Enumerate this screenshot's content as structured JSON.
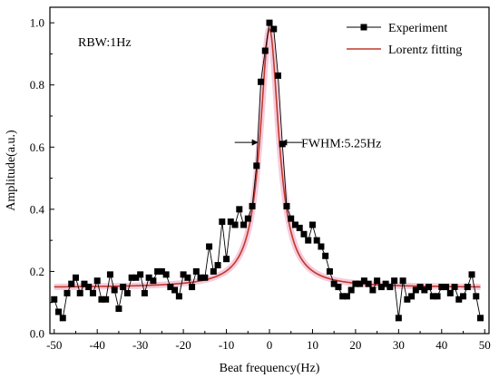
{
  "chart_data": {
    "type": "scatter",
    "xlabel": "Beat frequency(Hz)",
    "ylabel": "Amplitude(a.u.)",
    "xlim": [
      -51,
      51
    ],
    "ylim": [
      0.0,
      1.05
    ],
    "xticks": [
      -50,
      -40,
      -30,
      -20,
      -10,
      0,
      10,
      20,
      30,
      40,
      50
    ],
    "yticks": [
      0.0,
      0.2,
      0.4,
      0.6,
      0.8,
      1.0
    ],
    "xtick_labels": [
      "-50",
      "-40",
      "-30",
      "-20",
      "-10",
      "0",
      "10",
      "20",
      "30",
      "40",
      "50"
    ],
    "ytick_labels": [
      "0.0",
      "0.2",
      "0.4",
      "0.6",
      "0.8",
      "1.0"
    ],
    "grid": false,
    "legend_position": "top-right",
    "annotations": {
      "rbw": "RBW:1Hz",
      "fwhm": "FWHM:5.25Hz"
    },
    "colors": {
      "experiment": "#000000",
      "fit": "#c0392b",
      "fit_glow": "#f4c2d6"
    },
    "series": [
      {
        "name": "Experiment",
        "style": "line-square-markers",
        "x": [
          -50,
          -49,
          -48,
          -47,
          -46,
          -45,
          -44,
          -43,
          -42,
          -41,
          -40,
          -39,
          -38,
          -37,
          -36,
          -35,
          -34,
          -33,
          -32,
          -31,
          -30,
          -29,
          -28,
          -27,
          -26,
          -25,
          -24,
          -23,
          -22,
          -21,
          -20,
          -19,
          -18,
          -17,
          -16,
          -15,
          -14,
          -13,
          -12,
          -11,
          -10,
          -9,
          -8,
          -7,
          -6,
          -5,
          -4,
          -3,
          -2,
          -1,
          0,
          1,
          2,
          3,
          4,
          5,
          6,
          7,
          8,
          9,
          10,
          11,
          12,
          13,
          14,
          15,
          16,
          17,
          18,
          19,
          20,
          21,
          22,
          23,
          24,
          25,
          26,
          27,
          28,
          29,
          30,
          31,
          32,
          33,
          34,
          35,
          36,
          37,
          38,
          39,
          40,
          41,
          42,
          43,
          44,
          45,
          46,
          47,
          48,
          49
        ],
        "y": [
          0.11,
          0.07,
          0.05,
          0.13,
          0.16,
          0.18,
          0.13,
          0.16,
          0.15,
          0.13,
          0.17,
          0.11,
          0.11,
          0.19,
          0.14,
          0.08,
          0.15,
          0.13,
          0.18,
          0.18,
          0.19,
          0.13,
          0.18,
          0.17,
          0.2,
          0.2,
          0.19,
          0.15,
          0.14,
          0.12,
          0.19,
          0.18,
          0.15,
          0.2,
          0.18,
          0.18,
          0.28,
          0.2,
          0.22,
          0.36,
          0.24,
          0.36,
          0.35,
          0.4,
          0.35,
          0.37,
          0.41,
          0.54,
          0.81,
          0.91,
          1.0,
          0.98,
          0.83,
          0.61,
          0.41,
          0.37,
          0.35,
          0.34,
          0.32,
          0.3,
          0.35,
          0.3,
          0.28,
          0.25,
          0.2,
          0.16,
          0.15,
          0.12,
          0.12,
          0.14,
          0.16,
          0.16,
          0.17,
          0.16,
          0.14,
          0.17,
          0.15,
          0.16,
          0.15,
          0.17,
          0.05,
          0.17,
          0.11,
          0.12,
          0.14,
          0.15,
          0.14,
          0.15,
          0.12,
          0.12,
          0.15,
          0.15,
          0.13,
          0.15,
          0.11,
          0.12,
          0.15,
          0.19,
          0.12,
          0.05
        ]
      },
      {
        "name": "Lorentz fitting",
        "style": "line",
        "model": "lorentzian",
        "baseline": 0.148,
        "amplitude": 0.832,
        "center": 0.0,
        "fwhm": 5.25
      }
    ]
  }
}
